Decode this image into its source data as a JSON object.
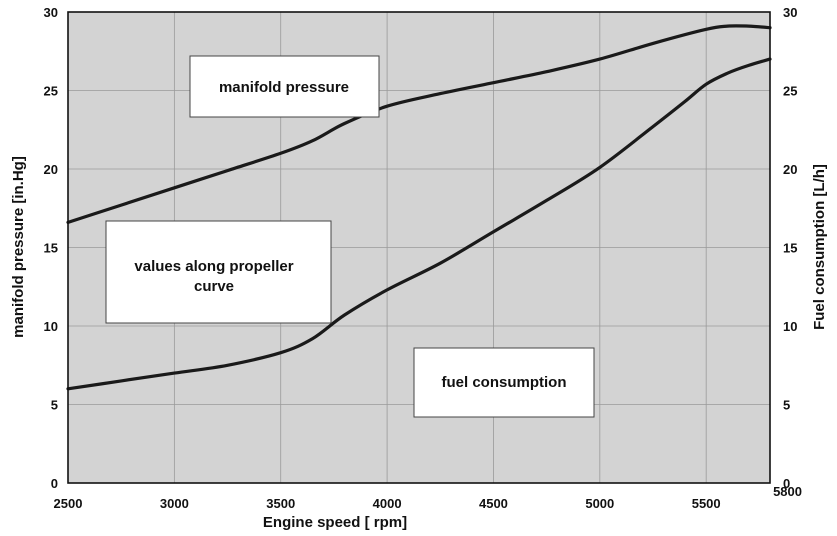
{
  "chart_data": {
    "type": "line",
    "xlabel": "Engine speed [ rpm]",
    "ylabel_left": "manifold pressure [in.Hg]",
    "ylabel_right": "Fuel consumption [L/h]",
    "xlim": [
      2500,
      5800
    ],
    "ylim_left": [
      0,
      30
    ],
    "ylim_right": [
      0,
      30
    ],
    "x_ticks": [
      "2500",
      "3000",
      "3500",
      "4000",
      "4500",
      "5000",
      "5500",
      "5800"
    ],
    "y_ticks_left": [
      "0",
      "5",
      "10",
      "15",
      "20",
      "25",
      "30"
    ],
    "y_ticks_right": [
      "0",
      "5",
      "10",
      "15",
      "20",
      "25",
      "30"
    ],
    "grid": true,
    "background_color": "#d3d3d3",
    "line_color": "#1a1a1a",
    "series": [
      {
        "name": "manifold pressure",
        "axis": "left",
        "x": [
          2500,
          2750,
          3000,
          3250,
          3500,
          3650,
          3800,
          4000,
          4250,
          4500,
          4750,
          5000,
          5250,
          5500,
          5600,
          5700,
          5800
        ],
        "y": [
          16.6,
          17.7,
          18.8,
          19.9,
          21.0,
          21.8,
          22.9,
          24.0,
          24.8,
          25.5,
          26.2,
          27.0,
          28.0,
          28.9,
          29.1,
          29.1,
          29.0
        ]
      },
      {
        "name": "fuel consumption",
        "axis": "right",
        "x": [
          2500,
          2750,
          3000,
          3250,
          3500,
          3650,
          3800,
          4000,
          4250,
          4500,
          4750,
          5000,
          5250,
          5400,
          5500,
          5600,
          5700,
          5800
        ],
        "y": [
          6.0,
          6.5,
          7.0,
          7.5,
          8.3,
          9.2,
          10.7,
          12.3,
          14.0,
          16.0,
          18.0,
          20.1,
          22.7,
          24.3,
          25.4,
          26.1,
          26.6,
          27.0
        ]
      }
    ],
    "annotations": [
      {
        "text": "manifold pressure"
      },
      {
        "lines": [
          "values along propeller",
          "curve"
        ]
      },
      {
        "text": "fuel consumption"
      }
    ]
  }
}
